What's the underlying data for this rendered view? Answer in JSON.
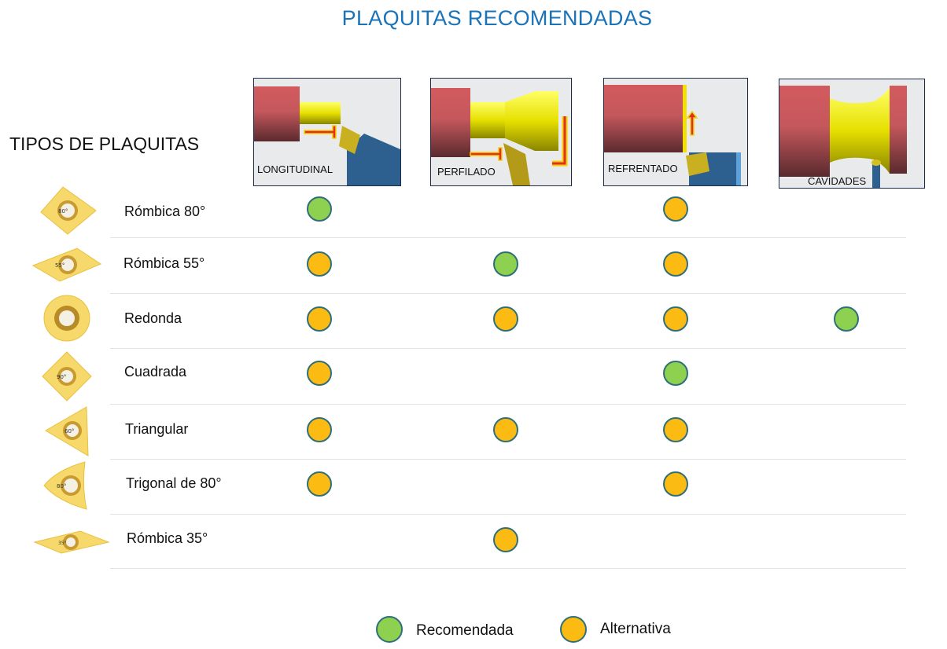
{
  "title": "PLAQUITAS RECOMENDADAS",
  "subtitle": "TIPOS DE PLAQUITAS",
  "operations": [
    {
      "label": "LONGITUDINAL"
    },
    {
      "label": "PERFILADO"
    },
    {
      "label": "REFRENTADO"
    },
    {
      "label": "CAVIDADES"
    }
  ],
  "rows": [
    {
      "label": "Rómbica 80°",
      "marks": [
        "rec",
        "",
        "alt",
        ""
      ],
      "insert_icon": "rhombic-80-insert-icon",
      "angle": "80°"
    },
    {
      "label": "Rómbica 55°",
      "marks": [
        "alt",
        "rec",
        "alt",
        ""
      ],
      "insert_icon": "rhombic-55-insert-icon",
      "angle": "55°"
    },
    {
      "label": "Redonda",
      "marks": [
        "alt",
        "alt",
        "alt",
        "rec"
      ],
      "insert_icon": "round-insert-icon",
      "angle": ""
    },
    {
      "label": "Cuadrada",
      "marks": [
        "alt",
        "",
        "rec",
        ""
      ],
      "insert_icon": "square-insert-icon",
      "angle": "90°"
    },
    {
      "label": "Triangular",
      "marks": [
        "alt",
        "alt",
        "alt",
        ""
      ],
      "insert_icon": "triangular-insert-icon",
      "angle": "60°"
    },
    {
      "label": "Trigonal de 80°",
      "marks": [
        "alt",
        "",
        "alt",
        ""
      ],
      "insert_icon": "trigonal-80-insert-icon",
      "angle": "80°"
    },
    {
      "label": "Rómbica 35°",
      "marks": [
        "",
        "alt",
        "",
        ""
      ],
      "insert_icon": "rhombic-35-insert-icon",
      "angle": "35°"
    }
  ],
  "legend": [
    {
      "label": "Recomendada",
      "color": "#8ed04f"
    },
    {
      "label": "Alternativa",
      "color": "#fbbb12"
    }
  ],
  "colors": {
    "recommended": "#8ed04f",
    "alternative": "#fbbb12",
    "title": "#1a73b8"
  }
}
